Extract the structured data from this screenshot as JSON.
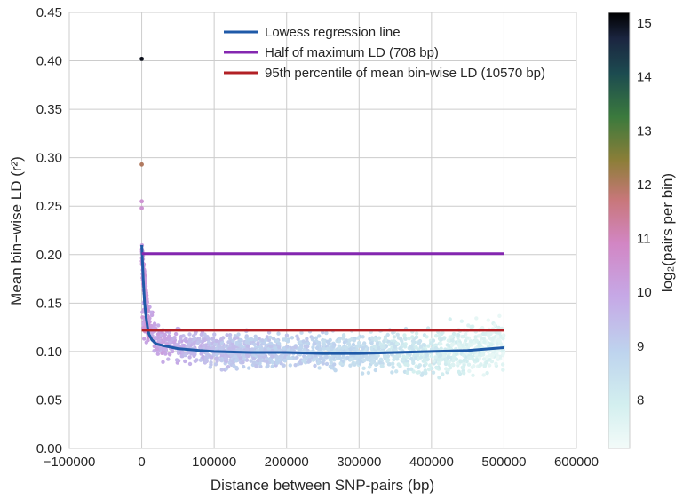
{
  "chart_data": {
    "type": "scatter",
    "xlabel": "Distance between SNP-pairs (bp)",
    "ylabel": "Mean bin−wise LD (r²)",
    "xlim": [
      -100000,
      600000
    ],
    "ylim": [
      0,
      0.45
    ],
    "x_ticks": [
      "−100000",
      "0",
      "100000",
      "200000",
      "300000",
      "400000",
      "500000",
      "600000"
    ],
    "y_ticks": [
      "0.00",
      "0.05",
      "0.10",
      "0.15",
      "0.20",
      "0.25",
      "0.30",
      "0.35",
      "0.40",
      "0.45"
    ],
    "grid": true,
    "legend_position": "top-center",
    "series": [
      {
        "name": "Lowess regression line",
        "color": "#1f5aa8",
        "x": [
          0,
          2000,
          4000,
          6000,
          8000,
          10000,
          14000,
          20000,
          30000,
          50000,
          80000,
          100000,
          150000,
          200000,
          250000,
          300000,
          350000,
          400000,
          450000,
          500000
        ],
        "y": [
          0.21,
          0.175,
          0.15,
          0.135,
          0.125,
          0.118,
          0.112,
          0.108,
          0.106,
          0.103,
          0.101,
          0.1,
          0.099,
          0.099,
          0.098,
          0.098,
          0.099,
          0.1,
          0.101,
          0.104
        ]
      },
      {
        "name": "Half of maximum LD (708 bp)",
        "color": "#8427b0",
        "x": [
          0,
          500000
        ],
        "y": [
          0.201,
          0.201
        ]
      },
      {
        "name": "95th percentile of mean bin-wise LD (10570 bp)",
        "color": "#b22025",
        "x": [
          0,
          500000
        ],
        "y": [
          0.122,
          0.122
        ]
      }
    ],
    "scatter_summary": {
      "description_points": [
        {
          "x": 0,
          "y": 0.402,
          "log2_pairs": 15
        },
        {
          "x": 0,
          "y": 0.293,
          "log2_pairs": 12
        },
        {
          "x": 0,
          "y": 0.255,
          "log2_pairs": 10.5
        },
        {
          "x": 0,
          "y": 0.248,
          "log2_pairs": 10.5
        }
      ],
      "band": [
        {
          "x": 5000,
          "center": 0.135,
          "spread": 0.02,
          "log2_pairs": 10.2
        },
        {
          "x": 20000,
          "center": 0.11,
          "spread": 0.015,
          "log2_pairs": 10
        },
        {
          "x": 100000,
          "center": 0.1,
          "spread": 0.015,
          "log2_pairs": 9.3
        },
        {
          "x": 250000,
          "center": 0.1,
          "spread": 0.015,
          "log2_pairs": 8.8
        },
        {
          "x": 400000,
          "center": 0.1,
          "spread": 0.02,
          "log2_pairs": 8
        },
        {
          "x": 500000,
          "center": 0.105,
          "spread": 0.025,
          "log2_pairs": 7.5
        }
      ]
    },
    "colorbar": {
      "label": "log₂(pairs per bin)",
      "ticks": [
        "8",
        "9",
        "10",
        "11",
        "12",
        "13",
        "14",
        "15"
      ],
      "range": [
        7.1,
        15.2
      ]
    }
  }
}
